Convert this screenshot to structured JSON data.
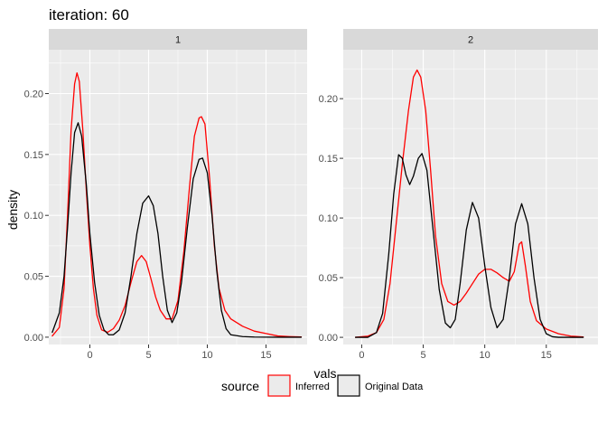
{
  "chart_data": {
    "type": "line",
    "title": "iteration: 60",
    "xlabel": "vals",
    "ylabel": "density",
    "panels": [
      {
        "strip": "1",
        "xlim": [
          -3.5,
          18.5
        ],
        "ylim": [
          -0.006,
          0.236
        ],
        "x_ticks": [
          0,
          5,
          10,
          15
        ],
        "y_ticks": [
          0.0,
          0.05,
          0.1,
          0.15,
          0.2
        ],
        "y_tick_labels": [
          "0.00",
          "0.05",
          "0.10",
          "0.15",
          "0.20"
        ],
        "series": [
          {
            "name": "Inferred",
            "color": "#ff0000",
            "points": [
              [
                -3.2,
                0.001
              ],
              [
                -2.6,
                0.008
              ],
              [
                -2.2,
                0.04
              ],
              [
                -1.9,
                0.1
              ],
              [
                -1.6,
                0.17
              ],
              [
                -1.3,
                0.208
              ],
              [
                -1.1,
                0.217
              ],
              [
                -0.9,
                0.21
              ],
              [
                -0.6,
                0.17
              ],
              [
                -0.3,
                0.12
              ],
              [
                0.0,
                0.075
              ],
              [
                0.3,
                0.04
              ],
              [
                0.6,
                0.018
              ],
              [
                1.0,
                0.006
              ],
              [
                1.5,
                0.004
              ],
              [
                2.0,
                0.007
              ],
              [
                2.5,
                0.014
              ],
              [
                3.0,
                0.026
              ],
              [
                3.5,
                0.045
              ],
              [
                4.0,
                0.062
              ],
              [
                4.4,
                0.067
              ],
              [
                4.8,
                0.062
              ],
              [
                5.2,
                0.048
              ],
              [
                5.6,
                0.033
              ],
              [
                6.0,
                0.022
              ],
              [
                6.5,
                0.015
              ],
              [
                7.0,
                0.015
              ],
              [
                7.5,
                0.03
              ],
              [
                8.0,
                0.07
              ],
              [
                8.5,
                0.125
              ],
              [
                8.9,
                0.165
              ],
              [
                9.3,
                0.18
              ],
              [
                9.5,
                0.181
              ],
              [
                9.8,
                0.175
              ],
              [
                10.2,
                0.13
              ],
              [
                10.6,
                0.075
              ],
              [
                11.0,
                0.04
              ],
              [
                11.5,
                0.022
              ],
              [
                12.0,
                0.015
              ],
              [
                13.0,
                0.009
              ],
              [
                14.0,
                0.005
              ],
              [
                15.0,
                0.003
              ],
              [
                16.0,
                0.001
              ],
              [
                17.0,
                0.0005
              ],
              [
                18.0,
                0.0002
              ]
            ]
          },
          {
            "name": "Original Data",
            "color": "#000000",
            "points": [
              [
                -3.2,
                0.004
              ],
              [
                -2.6,
                0.02
              ],
              [
                -2.2,
                0.05
              ],
              [
                -1.9,
                0.09
              ],
              [
                -1.6,
                0.135
              ],
              [
                -1.3,
                0.168
              ],
              [
                -1.0,
                0.176
              ],
              [
                -0.7,
                0.165
              ],
              [
                -0.3,
                0.125
              ],
              [
                0.0,
                0.085
              ],
              [
                0.4,
                0.045
              ],
              [
                0.8,
                0.018
              ],
              [
                1.2,
                0.006
              ],
              [
                1.6,
                0.002
              ],
              [
                2.0,
                0.002
              ],
              [
                2.5,
                0.006
              ],
              [
                3.0,
                0.02
              ],
              [
                3.5,
                0.05
              ],
              [
                4.0,
                0.085
              ],
              [
                4.5,
                0.11
              ],
              [
                5.0,
                0.116
              ],
              [
                5.4,
                0.108
              ],
              [
                5.8,
                0.085
              ],
              [
                6.2,
                0.05
              ],
              [
                6.6,
                0.022
              ],
              [
                7.0,
                0.012
              ],
              [
                7.4,
                0.02
              ],
              [
                7.8,
                0.045
              ],
              [
                8.3,
                0.09
              ],
              [
                8.8,
                0.13
              ],
              [
                9.3,
                0.146
              ],
              [
                9.6,
                0.147
              ],
              [
                10.0,
                0.135
              ],
              [
                10.4,
                0.1
              ],
              [
                10.8,
                0.055
              ],
              [
                11.2,
                0.022
              ],
              [
                11.6,
                0.007
              ],
              [
                12.0,
                0.002
              ],
              [
                13.0,
                0.0005
              ],
              [
                14.0,
                0.0001
              ],
              [
                16.0,
                0.0
              ],
              [
                18.0,
                0.0
              ]
            ]
          }
        ]
      },
      {
        "strip": "2",
        "xlim": [
          -1.5,
          19.2
        ],
        "ylim": [
          -0.006,
          0.241
        ],
        "x_ticks": [
          0,
          5,
          10,
          15
        ],
        "y_ticks": [
          0.0,
          0.05,
          0.1,
          0.15,
          0.2
        ],
        "y_tick_labels": [
          "0.00",
          "0.05",
          "0.10",
          "0.15",
          "0.20"
        ],
        "series": [
          {
            "name": "Inferred",
            "color": "#ff0000",
            "points": [
              [
                -0.5,
                0.0
              ],
              [
                0.5,
                0.001
              ],
              [
                1.2,
                0.004
              ],
              [
                1.8,
                0.015
              ],
              [
                2.3,
                0.045
              ],
              [
                2.8,
                0.095
              ],
              [
                3.3,
                0.145
              ],
              [
                3.8,
                0.19
              ],
              [
                4.2,
                0.218
              ],
              [
                4.5,
                0.224
              ],
              [
                4.8,
                0.218
              ],
              [
                5.2,
                0.19
              ],
              [
                5.6,
                0.14
              ],
              [
                6.0,
                0.085
              ],
              [
                6.5,
                0.045
              ],
              [
                7.0,
                0.03
              ],
              [
                7.5,
                0.027
              ],
              [
                8.0,
                0.03
              ],
              [
                8.5,
                0.037
              ],
              [
                9.0,
                0.045
              ],
              [
                9.5,
                0.053
              ],
              [
                10.0,
                0.057
              ],
              [
                10.5,
                0.057
              ],
              [
                11.0,
                0.054
              ],
              [
                11.5,
                0.05
              ],
              [
                12.0,
                0.047
              ],
              [
                12.4,
                0.055
              ],
              [
                12.8,
                0.078
              ],
              [
                13.0,
                0.08
              ],
              [
                13.3,
                0.06
              ],
              [
                13.7,
                0.03
              ],
              [
                14.2,
                0.014
              ],
              [
                15.0,
                0.007
              ],
              [
                16.0,
                0.003
              ],
              [
                17.0,
                0.001
              ],
              [
                18.0,
                0.0003
              ]
            ]
          },
          {
            "name": "Original Data",
            "color": "#000000",
            "points": [
              [
                -0.5,
                0.0
              ],
              [
                0.5,
                0.0
              ],
              [
                1.2,
                0.004
              ],
              [
                1.7,
                0.02
              ],
              [
                2.2,
                0.07
              ],
              [
                2.6,
                0.12
              ],
              [
                3.0,
                0.153
              ],
              [
                3.3,
                0.15
              ],
              [
                3.6,
                0.136
              ],
              [
                3.9,
                0.128
              ],
              [
                4.2,
                0.135
              ],
              [
                4.6,
                0.15
              ],
              [
                4.9,
                0.154
              ],
              [
                5.3,
                0.14
              ],
              [
                5.8,
                0.09
              ],
              [
                6.3,
                0.04
              ],
              [
                6.8,
                0.012
              ],
              [
                7.2,
                0.008
              ],
              [
                7.6,
                0.015
              ],
              [
                8.0,
                0.045
              ],
              [
                8.5,
                0.09
              ],
              [
                9.0,
                0.113
              ],
              [
                9.5,
                0.1
              ],
              [
                10.0,
                0.06
              ],
              [
                10.5,
                0.025
              ],
              [
                11.0,
                0.008
              ],
              [
                11.5,
                0.015
              ],
              [
                12.0,
                0.05
              ],
              [
                12.5,
                0.095
              ],
              [
                13.0,
                0.112
              ],
              [
                13.5,
                0.095
              ],
              [
                14.0,
                0.05
              ],
              [
                14.5,
                0.015
              ],
              [
                15.0,
                0.003
              ],
              [
                15.5,
                0.0005
              ],
              [
                16.0,
                0.0
              ],
              [
                17.0,
                0.0
              ],
              [
                18.0,
                0.0
              ]
            ]
          }
        ]
      }
    ],
    "legend": {
      "title": "source",
      "position": "bottom",
      "entries": [
        {
          "label": "Inferred",
          "color": "#ff0000"
        },
        {
          "label": "Original Data",
          "color": "#000000"
        }
      ]
    },
    "grid": true,
    "colors": {
      "panel_background": "#ebebeb",
      "strip_background": "#d9d9d9",
      "grid": "#ffffff"
    }
  }
}
